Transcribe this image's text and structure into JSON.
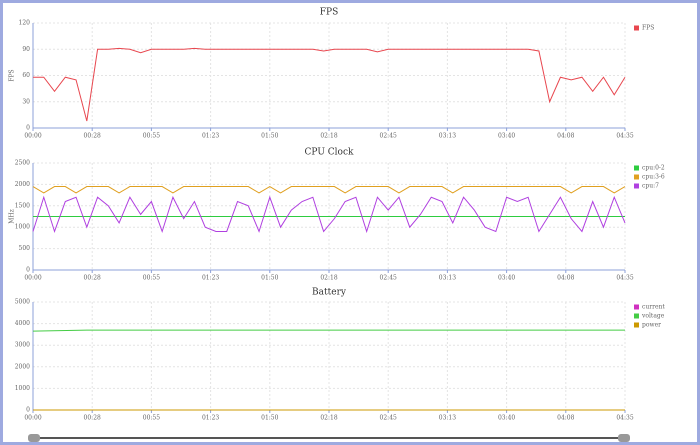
{
  "chart_data": [
    {
      "type": "line",
      "title": "FPS",
      "ylabel": "FPS",
      "x": [
        0,
        5,
        10,
        15,
        20,
        25,
        30,
        35,
        40,
        45,
        50,
        55,
        60,
        65,
        70,
        75,
        80,
        85,
        90,
        95,
        100,
        105,
        110,
        115,
        120,
        125,
        130,
        135,
        140,
        145,
        150,
        155,
        160,
        165,
        170,
        175,
        180,
        185,
        190,
        195,
        200,
        205,
        210,
        215,
        220,
        225,
        230,
        235,
        240,
        245,
        250,
        255,
        260,
        265,
        270,
        275
      ],
      "series": [
        {
          "name": "FPS",
          "color": "#e8474f",
          "values": [
            58,
            58,
            42,
            58,
            55,
            8,
            90,
            90,
            91,
            90,
            86,
            90,
            90,
            90,
            90,
            91,
            90,
            90,
            90,
            90,
            90,
            90,
            90,
            90,
            90,
            90,
            90,
            88,
            90,
            90,
            90,
            90,
            87,
            90,
            90,
            90,
            90,
            90,
            90,
            90,
            90,
            90,
            90,
            90,
            90,
            90,
            90,
            88,
            30,
            58,
            55,
            58,
            42,
            58,
            38,
            58
          ]
        }
      ],
      "xlim": [
        0,
        275
      ],
      "xticks": [
        {
          "value": 0,
          "label": "00:00"
        },
        {
          "value": 27.5,
          "label": "00:28"
        },
        {
          "value": 55,
          "label": "00:55"
        },
        {
          "value": 82.5,
          "label": "01:23"
        },
        {
          "value": 110,
          "label": "01:50"
        },
        {
          "value": 137.5,
          "label": "02:18"
        },
        {
          "value": 165,
          "label": "02:45"
        },
        {
          "value": 192.5,
          "label": "03:13"
        },
        {
          "value": 220,
          "label": "03:40"
        },
        {
          "value": 247.5,
          "label": "04:08"
        },
        {
          "value": 275,
          "label": "04:35"
        }
      ],
      "ylim": [
        0,
        120
      ],
      "yticks": [
        0,
        30,
        60,
        90,
        120
      ],
      "grid": true
    },
    {
      "type": "line",
      "title": "CPU Clock",
      "ylabel": "MHz",
      "x": [
        0,
        5,
        10,
        15,
        20,
        25,
        30,
        35,
        40,
        45,
        50,
        55,
        60,
        65,
        70,
        75,
        80,
        85,
        90,
        95,
        100,
        105,
        110,
        115,
        120,
        125,
        130,
        135,
        140,
        145,
        150,
        155,
        160,
        165,
        170,
        175,
        180,
        185,
        190,
        195,
        200,
        205,
        210,
        215,
        220,
        225,
        230,
        235,
        240,
        245,
        250,
        255,
        260,
        265,
        270,
        275
      ],
      "series": [
        {
          "name": "cpu:0-2",
          "color": "#2ecc40",
          "values": [
            1250,
            1250,
            1250,
            1250,
            1250,
            1250,
            1250,
            1250,
            1250,
            1250,
            1250,
            1250,
            1250,
            1250,
            1250,
            1250,
            1250,
            1250,
            1250,
            1250,
            1250,
            1250,
            1250,
            1250,
            1250,
            1250,
            1250,
            1250,
            1250,
            1250,
            1250,
            1250,
            1250,
            1250,
            1250,
            1250,
            1250,
            1250,
            1250,
            1250,
            1250,
            1250,
            1250,
            1250,
            1250,
            1250,
            1250,
            1250,
            1250,
            1250,
            1250,
            1250,
            1250,
            1250,
            1250,
            1250
          ]
        },
        {
          "name": "cpu:3-6",
          "color": "#e0a020",
          "values": [
            1950,
            1800,
            1950,
            1950,
            1800,
            1950,
            1950,
            1950,
            1800,
            1950,
            1950,
            1950,
            1950,
            1800,
            1950,
            1950,
            1950,
            1950,
            1950,
            1950,
            1950,
            1800,
            1950,
            1800,
            1950,
            1950,
            1950,
            1950,
            1950,
            1800,
            1950,
            1950,
            1950,
            1950,
            1800,
            1950,
            1950,
            1950,
            1950,
            1800,
            1950,
            1950,
            1950,
            1950,
            1950,
            1950,
            1950,
            1950,
            1950,
            1950,
            1800,
            1950,
            1950,
            1950,
            1800,
            1950
          ]
        },
        {
          "name": "cpu:7",
          "color": "#b040e0",
          "values": [
            900,
            1700,
            900,
            1600,
            1700,
            1000,
            1700,
            1500,
            1100,
            1700,
            1300,
            1600,
            900,
            1700,
            1200,
            1600,
            1000,
            900,
            900,
            1600,
            1500,
            900,
            1700,
            1000,
            1400,
            1600,
            1700,
            900,
            1200,
            1600,
            1700,
            900,
            1700,
            1400,
            1700,
            1000,
            1300,
            1700,
            1600,
            1100,
            1700,
            1400,
            1000,
            900,
            1700,
            1600,
            1700,
            900,
            1300,
            1700,
            1200,
            900,
            1600,
            1000,
            1700,
            1100
          ]
        }
      ],
      "xlim": [
        0,
        275
      ],
      "xticks": [
        {
          "value": 0,
          "label": "00:00"
        },
        {
          "value": 27.5,
          "label": "00:28"
        },
        {
          "value": 55,
          "label": "00:55"
        },
        {
          "value": 82.5,
          "label": "01:23"
        },
        {
          "value": 110,
          "label": "01:50"
        },
        {
          "value": 137.5,
          "label": "02:18"
        },
        {
          "value": 165,
          "label": "02:45"
        },
        {
          "value": 192.5,
          "label": "03:13"
        },
        {
          "value": 220,
          "label": "03:40"
        },
        {
          "value": 247.5,
          "label": "04:08"
        },
        {
          "value": 275,
          "label": "04:35"
        }
      ],
      "ylim": [
        0,
        2500
      ],
      "yticks": [
        0,
        500,
        1000,
        1500,
        2000,
        2500
      ],
      "grid": true
    },
    {
      "type": "line",
      "title": "Battery",
      "x": [
        0,
        25,
        50,
        75,
        100,
        125,
        150,
        175,
        200,
        225,
        250,
        275
      ],
      "series": [
        {
          "name": "current",
          "color": "#d030c0",
          "values": [
            0,
            0,
            0,
            0,
            0,
            0,
            0,
            0,
            0,
            0,
            0,
            0
          ]
        },
        {
          "name": "voltage",
          "color": "#44cc44",
          "values": [
            3650,
            3700,
            3700,
            3700,
            3700,
            3700,
            3700,
            3700,
            3700,
            3700,
            3700,
            3700
          ]
        },
        {
          "name": "power",
          "color": "#cc9900",
          "values": [
            0,
            0,
            0,
            0,
            0,
            0,
            0,
            0,
            0,
            0,
            0,
            0
          ]
        }
      ],
      "xlim": [
        0,
        275
      ],
      "xticks": [
        {
          "value": 0,
          "label": "00:00"
        },
        {
          "value": 27.5,
          "label": "00:28"
        },
        {
          "value": 55,
          "label": "00:55"
        },
        {
          "value": 82.5,
          "label": "01:23"
        },
        {
          "value": 110,
          "label": "01:50"
        },
        {
          "value": 137.5,
          "label": "02:18"
        },
        {
          "value": 165,
          "label": "02:45"
        },
        {
          "value": 192.5,
          "label": "03:13"
        },
        {
          "value": 220,
          "label": "03:40"
        },
        {
          "value": 247.5,
          "label": "04:08"
        },
        {
          "value": 275,
          "label": "04:35"
        }
      ],
      "ylim": [
        0,
        5000
      ],
      "yticks": [
        0,
        1000,
        2000,
        3000,
        4000,
        5000
      ],
      "grid": true
    }
  ]
}
